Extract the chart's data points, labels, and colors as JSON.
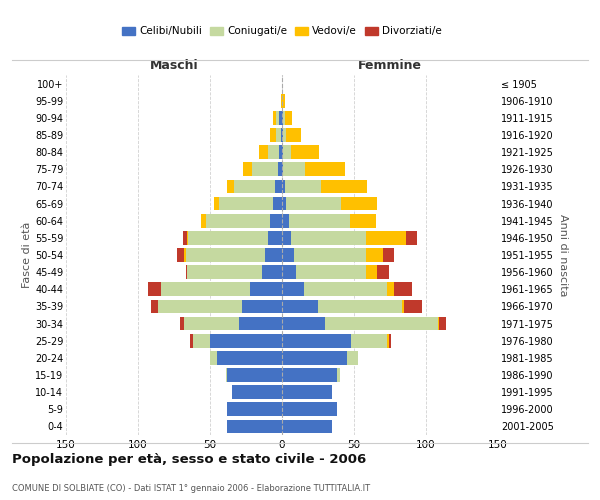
{
  "age_groups": [
    "0-4",
    "5-9",
    "10-14",
    "15-19",
    "20-24",
    "25-29",
    "30-34",
    "35-39",
    "40-44",
    "45-49",
    "50-54",
    "55-59",
    "60-64",
    "65-69",
    "70-74",
    "75-79",
    "80-84",
    "85-89",
    "90-94",
    "95-99",
    "100+"
  ],
  "birth_years": [
    "2001-2005",
    "1996-2000",
    "1991-1995",
    "1986-1990",
    "1981-1985",
    "1976-1980",
    "1971-1975",
    "1966-1970",
    "1961-1965",
    "1956-1960",
    "1951-1955",
    "1946-1950",
    "1941-1945",
    "1936-1940",
    "1931-1935",
    "1926-1930",
    "1921-1925",
    "1916-1920",
    "1911-1915",
    "1906-1910",
    "≤ 1905"
  ],
  "male": {
    "celibi": [
      38,
      38,
      35,
      38,
      45,
      50,
      30,
      28,
      22,
      14,
      12,
      10,
      8,
      6,
      5,
      3,
      2,
      1,
      2,
      0,
      0
    ],
    "coniugati": [
      0,
      0,
      0,
      1,
      5,
      12,
      38,
      58,
      62,
      52,
      55,
      55,
      45,
      38,
      28,
      18,
      8,
      3,
      2,
      0,
      0
    ],
    "vedovi": [
      0,
      0,
      0,
      0,
      0,
      0,
      0,
      0,
      0,
      0,
      1,
      1,
      3,
      3,
      5,
      6,
      6,
      4,
      2,
      1,
      0
    ],
    "divorziati": [
      0,
      0,
      0,
      0,
      0,
      2,
      3,
      5,
      9,
      1,
      5,
      3,
      0,
      0,
      0,
      0,
      0,
      0,
      0,
      0,
      0
    ]
  },
  "female": {
    "nubili": [
      35,
      38,
      35,
      38,
      45,
      48,
      30,
      25,
      15,
      10,
      8,
      6,
      5,
      3,
      2,
      1,
      1,
      1,
      1,
      0,
      0
    ],
    "coniugate": [
      0,
      0,
      0,
      2,
      8,
      25,
      78,
      58,
      58,
      48,
      50,
      52,
      42,
      38,
      25,
      15,
      5,
      2,
      1,
      0,
      0
    ],
    "vedove": [
      0,
      0,
      0,
      0,
      0,
      1,
      1,
      2,
      5,
      8,
      12,
      28,
      18,
      25,
      32,
      28,
      20,
      10,
      5,
      2,
      0
    ],
    "divorziate": [
      0,
      0,
      0,
      0,
      0,
      2,
      5,
      12,
      12,
      8,
      8,
      8,
      0,
      0,
      0,
      0,
      0,
      0,
      0,
      0,
      0
    ]
  },
  "colors": {
    "celibi": "#4472c4",
    "coniugati": "#c5d9a0",
    "vedovi": "#ffc000",
    "divorziati": "#c0392b"
  },
  "title": "Popolazione per età, sesso e stato civile - 2006",
  "subtitle": "COMUNE DI SOLBIATE (CO) - Dati ISTAT 1° gennaio 2006 - Elaborazione TUTTITALIA.IT",
  "xlabel_left": "Maschi",
  "xlabel_right": "Femmine",
  "ylabel_left": "Fasce di età",
  "ylabel_right": "Anni di nascita",
  "xlim": 150,
  "bg_color": "#ffffff",
  "grid_color": "#cccccc",
  "legend_labels": [
    "Celibi/Nubili",
    "Coniugati/e",
    "Vedovi/e",
    "Divorziati/e"
  ]
}
